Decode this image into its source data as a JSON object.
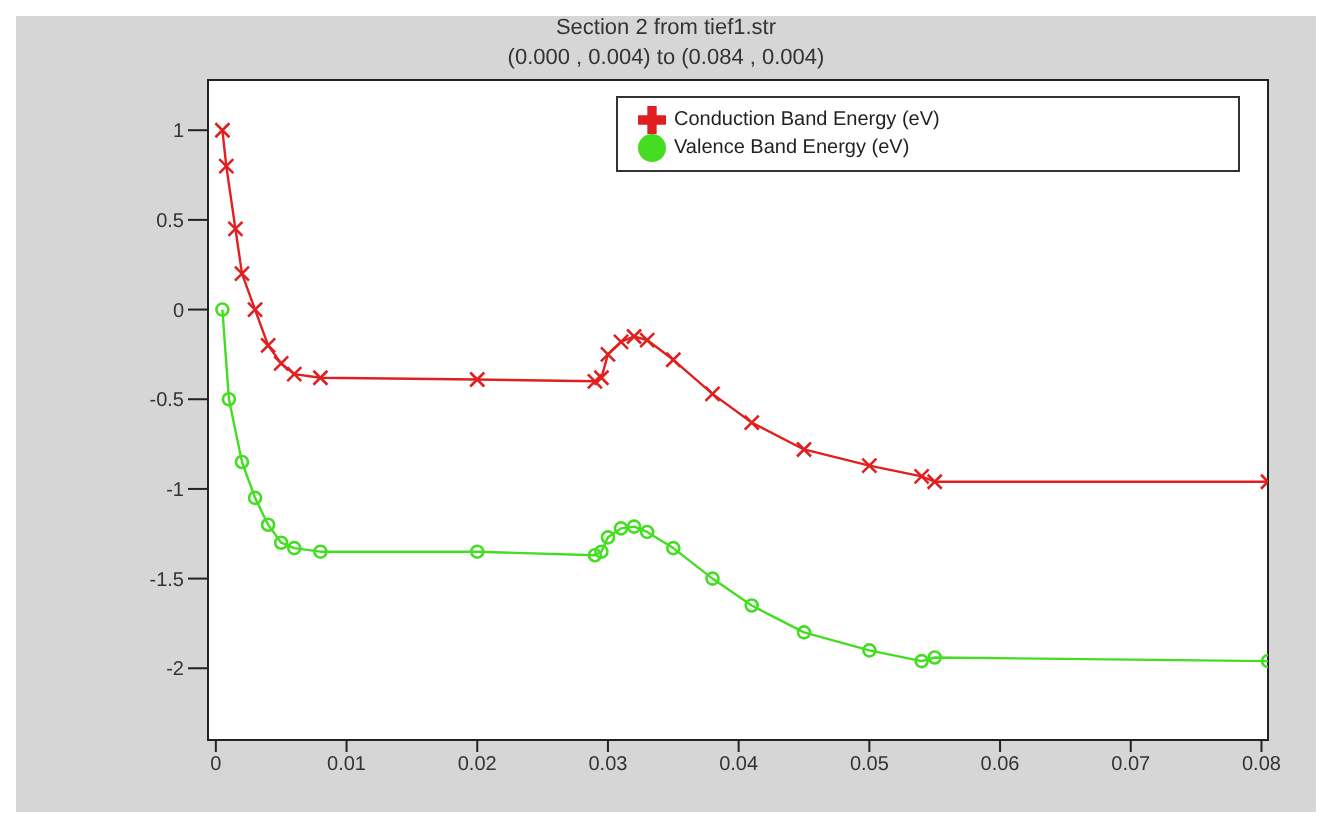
{
  "chart_data": {
    "type": "line",
    "title": "Section 2 from tief1.str",
    "subtitle": "(0.000 , 0.004) to (0.084 , 0.004)",
    "series": [
      {
        "name": "Conduction Band Energy (eV)",
        "color": "#e02020",
        "marker": "cross",
        "x": [
          0.0005,
          0.0008,
          0.0015,
          0.002,
          0.003,
          0.004,
          0.005,
          0.006,
          0.008,
          0.02,
          0.029,
          0.0295,
          0.03,
          0.031,
          0.032,
          0.033,
          0.035,
          0.038,
          0.041,
          0.045,
          0.05,
          0.054,
          0.055,
          0.0805
        ],
        "values": [
          1.0,
          0.8,
          0.45,
          0.2,
          0.0,
          -0.2,
          -0.3,
          -0.36,
          -0.38,
          -0.39,
          -0.4,
          -0.38,
          -0.25,
          -0.18,
          -0.15,
          -0.17,
          -0.28,
          -0.47,
          -0.63,
          -0.78,
          -0.87,
          -0.93,
          -0.96,
          -0.96
        ]
      },
      {
        "name": "Valence Band Energy (eV)",
        "color": "#44dd22",
        "marker": "circle",
        "x": [
          0.0005,
          0.001,
          0.002,
          0.003,
          0.004,
          0.005,
          0.006,
          0.008,
          0.02,
          0.029,
          0.0295,
          0.03,
          0.031,
          0.032,
          0.033,
          0.035,
          0.038,
          0.041,
          0.045,
          0.05,
          0.054,
          0.055,
          0.0805
        ],
        "values": [
          0.0,
          -0.5,
          -0.85,
          -1.05,
          -1.2,
          -1.3,
          -1.33,
          -1.35,
          -1.35,
          -1.37,
          -1.35,
          -1.27,
          -1.22,
          -1.21,
          -1.24,
          -1.33,
          -1.5,
          -1.65,
          -1.8,
          -1.9,
          -1.96,
          -1.94,
          -1.96
        ]
      }
    ],
    "xlim": [
      -0.0006,
      0.0805
    ],
    "xticks": [
      0,
      0.01,
      0.02,
      0.03,
      0.04,
      0.05,
      0.06,
      0.07,
      0.08
    ],
    "ylim": [
      -2.4,
      1.28
    ],
    "yticks": [
      1,
      0.5,
      0,
      -0.5,
      -1,
      -1.5,
      -2
    ],
    "legend": "top right",
    "line_style": "solid"
  }
}
